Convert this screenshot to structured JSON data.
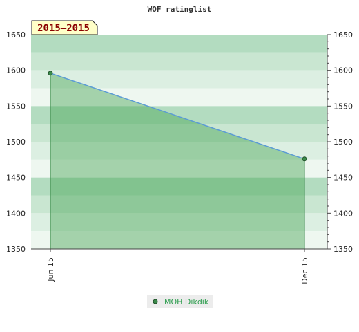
{
  "chart_data": {
    "type": "area",
    "title": "WOF ratinglist",
    "period_label": "2015–2015",
    "x": [
      "Jun 15",
      "Dec 15"
    ],
    "series": [
      {
        "name": "MOH Dikdik",
        "values": [
          1596,
          1476
        ]
      }
    ],
    "xlabel": "",
    "ylabel": "",
    "ylim": [
      1350,
      1650
    ],
    "y_ticks": [
      1350,
      1400,
      1450,
      1500,
      1550,
      1600,
      1650
    ],
    "grid": true,
    "legend_position": "bottom-center",
    "colors": {
      "line": "#5b9bd5",
      "fill": "#3fa04c",
      "marker": "#3a8a4a",
      "legend_text": "#2e9e4f",
      "badge_bg": "#ffffc8"
    }
  }
}
